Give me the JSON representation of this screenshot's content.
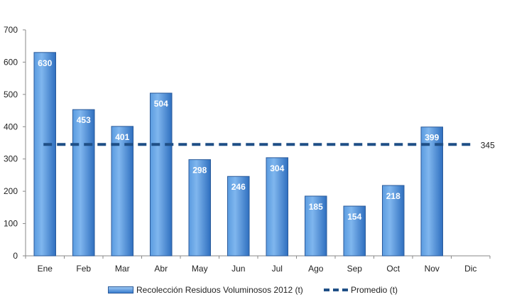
{
  "chart_data": {
    "type": "bar",
    "categories": [
      "Ene",
      "Feb",
      "Mar",
      "Abr",
      "May",
      "Jun",
      "Jul",
      "Ago",
      "Sep",
      "Oct",
      "Nov",
      "Dic"
    ],
    "series": [
      {
        "name": "Recolección Residuos Voluminosos 2012 (t)",
        "type": "bar",
        "values": [
          630,
          453,
          401,
          504,
          298,
          246,
          304,
          185,
          154,
          218,
          399,
          null
        ],
        "color": "#3a7fd0"
      },
      {
        "name": "Promedio (t)",
        "type": "line",
        "style": "dashed",
        "value": 345,
        "color": "#1f4f86"
      }
    ],
    "average_label": "345",
    "ylim": [
      0,
      700
    ],
    "yticks": [
      0,
      100,
      200,
      300,
      400,
      500,
      600,
      700
    ],
    "grid": false,
    "legend_position": "bottom",
    "data_labels": true
  }
}
